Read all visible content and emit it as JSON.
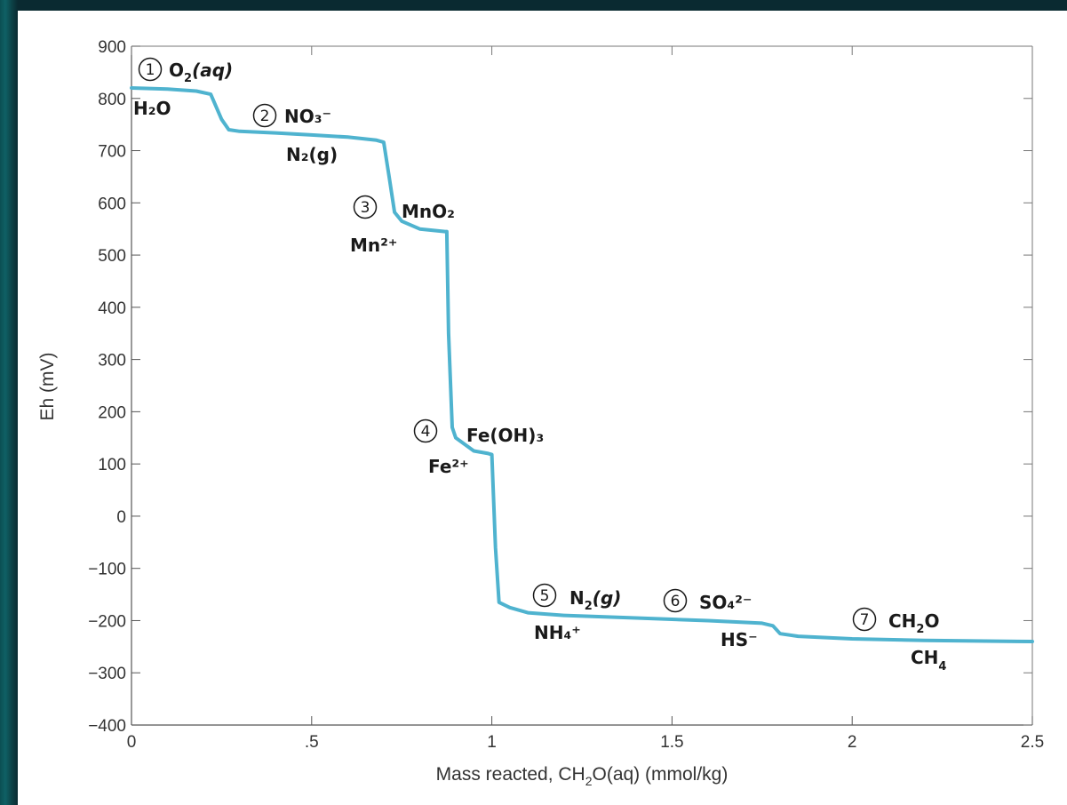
{
  "chart_data": {
    "type": "line",
    "title": "",
    "xlabel": "Mass reacted, CH2O(aq) (mmol/kg)",
    "xlabel_parts": {
      "a": "Mass reacted, CH",
      "sub": "2",
      "b": "O(aq) (mmol/kg)"
    },
    "ylabel": "Eh (mV)",
    "xlim": [
      0,
      2.5
    ],
    "ylim": [
      -400,
      900
    ],
    "xticks": [
      {
        "v": 0,
        "label": "0"
      },
      {
        "v": 0.5,
        "label": ".5"
      },
      {
        "v": 1,
        "label": "1"
      },
      {
        "v": 1.5,
        "label": "1.5"
      },
      {
        "v": 2,
        "label": "2"
      },
      {
        "v": 2.5,
        "label": "2.5"
      }
    ],
    "yticks": [
      {
        "v": 900,
        "label": "900"
      },
      {
        "v": 800,
        "label": "800"
      },
      {
        "v": 700,
        "label": "700"
      },
      {
        "v": 600,
        "label": "600"
      },
      {
        "v": 500,
        "label": "500"
      },
      {
        "v": 400,
        "label": "400"
      },
      {
        "v": 300,
        "label": "300"
      },
      {
        "v": 200,
        "label": "200"
      },
      {
        "v": 100,
        "label": "100"
      },
      {
        "v": 0,
        "label": "0"
      },
      {
        "v": -100,
        "label": "−100"
      },
      {
        "v": -200,
        "label": "−200"
      },
      {
        "v": -300,
        "label": "−300"
      },
      {
        "v": -400,
        "label": "−400"
      }
    ],
    "grid": false,
    "series": [
      {
        "color": "#4fb3cf",
        "x": [
          0,
          0.1,
          0.18,
          0.22,
          0.25,
          0.27,
          0.3,
          0.4,
          0.5,
          0.6,
          0.68,
          0.7,
          0.715,
          0.73,
          0.75,
          0.8,
          0.87,
          0.875,
          0.88,
          0.89,
          0.9,
          0.95,
          0.99,
          1.0,
          1.01,
          1.02,
          1.05,
          1.1,
          1.2,
          1.4,
          1.6,
          1.75,
          1.78,
          1.8,
          1.85,
          2.0,
          2.2,
          2.5
        ],
        "y": [
          820,
          818,
          814,
          808,
          760,
          740,
          737,
          734,
          730,
          726,
          720,
          716,
          650,
          582,
          565,
          550,
          545,
          545,
          350,
          170,
          150,
          125,
          120,
          118,
          -60,
          -165,
          -175,
          -185,
          -190,
          -195,
          -200,
          -205,
          -210,
          -225,
          -230,
          -235,
          -238,
          -240
        ]
      }
    ],
    "annotations": [
      {
        "num": "1",
        "ox": "O",
        "ox_sub": "2",
        "ox_tail": "(aq)",
        "red": "H₂O"
      },
      {
        "num": "2",
        "ox": "NO₃⁻",
        "red": "N₂(g)"
      },
      {
        "num": "3",
        "ox": "MnO₂",
        "red": "Mn²⁺"
      },
      {
        "num": "4",
        "ox": "Fe(OH)₃",
        "red": "Fe²⁺"
      },
      {
        "num": "5",
        "ox": "N",
        "ox_sub": "2",
        "ox_tail": "(g)",
        "red": "NH₄⁺"
      },
      {
        "num": "6",
        "ox": "SO₄²⁻",
        "red": "HS⁻"
      },
      {
        "num": "7",
        "ox": "CH",
        "ox_sub": "2",
        "ox_tail": "O",
        "red": "CH",
        "red_sub": "4"
      }
    ]
  }
}
